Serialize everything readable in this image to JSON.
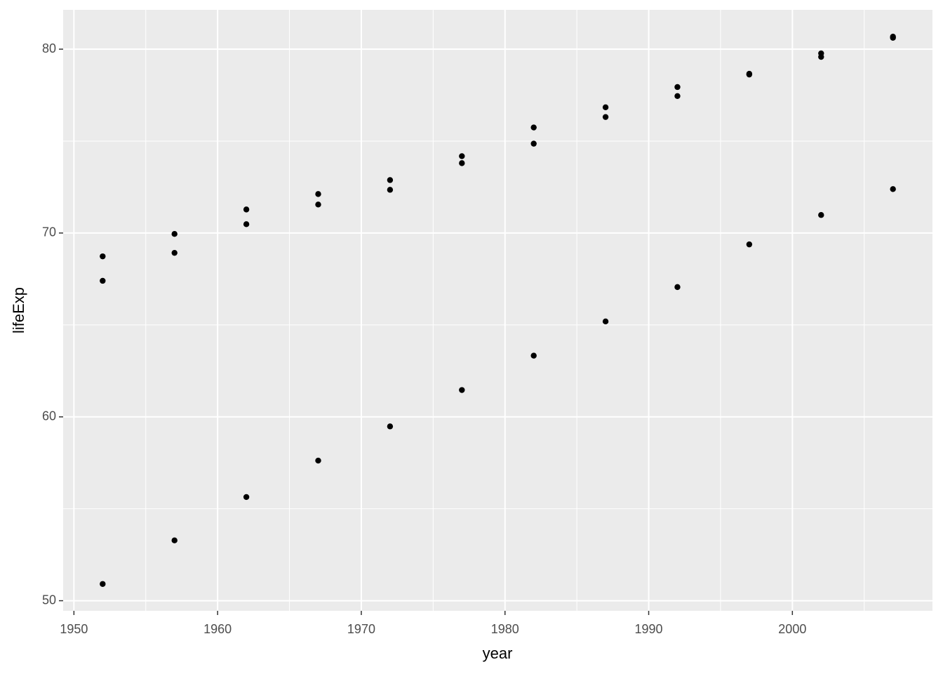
{
  "chart_data": {
    "type": "scatter",
    "x_label": "year",
    "y_label": "lifeExp",
    "x": [
      1952,
      1952,
      1952,
      1957,
      1957,
      1957,
      1962,
      1962,
      1962,
      1967,
      1967,
      1967,
      1972,
      1972,
      1972,
      1977,
      1977,
      1977,
      1982,
      1982,
      1982,
      1987,
      1987,
      1987,
      1992,
      1992,
      1992,
      1997,
      1997,
      1997,
      2002,
      2002,
      2002,
      2007,
      2007,
      2007
    ],
    "values": [
      68.73,
      67.4,
      50.91,
      69.95,
      68.92,
      53.28,
      71.28,
      70.48,
      55.64,
      72.12,
      71.55,
      57.62,
      72.88,
      72.35,
      59.48,
      74.18,
      73.8,
      61.46,
      75.74,
      74.86,
      63.33,
      76.84,
      76.31,
      65.19,
      77.94,
      77.45,
      67.06,
      78.66,
      78.62,
      69.38,
      79.77,
      79.58,
      70.98,
      80.68,
      80.62,
      72.39
    ],
    "color": "#000000",
    "xlim": [
      1949.25,
      2009.75
    ],
    "xticks": [
      1950,
      1960,
      1970,
      1980,
      1990,
      2000
    ],
    "ylim": [
      49.45,
      82.14
    ],
    "yticks": [
      50,
      60,
      70,
      80
    ],
    "grid": true
  }
}
